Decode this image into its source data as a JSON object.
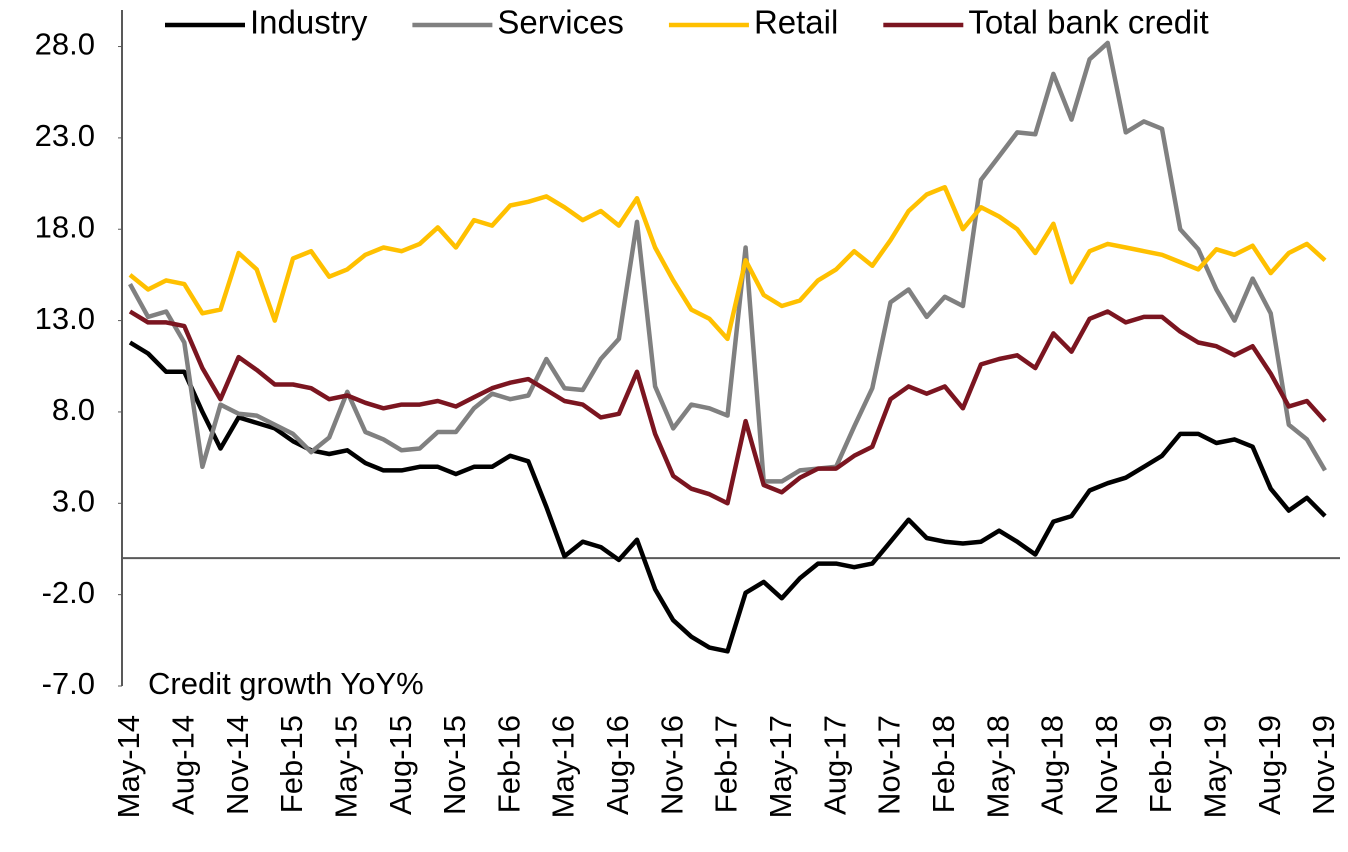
{
  "chart_data": {
    "type": "line",
    "annotation": "Credit growth  YoY%",
    "legend": "top",
    "categories": [
      "May-14",
      null,
      null,
      "Aug-14",
      null,
      null,
      "Nov-14",
      null,
      null,
      "Feb-15",
      null,
      null,
      "May-15",
      null,
      null,
      "Aug-15",
      null,
      null,
      "Nov-15",
      null,
      null,
      "Feb-16",
      null,
      null,
      "May-16",
      null,
      null,
      "Aug-16",
      null,
      null,
      "Nov-16",
      null,
      null,
      "Feb-17",
      null,
      null,
      "May-17",
      null,
      null,
      "Aug-17",
      null,
      null,
      "Nov-17",
      null,
      null,
      "Feb-18",
      null,
      null,
      "May-18",
      null,
      null,
      "Aug-18",
      null,
      null,
      "Nov-18",
      null,
      null,
      "Feb-19",
      null,
      null,
      "May-19",
      null,
      null,
      "Aug-19",
      null,
      null,
      "Nov-19"
    ],
    "ylim": [
      -7,
      30
    ],
    "yticks": [
      {
        "value": -7,
        "label": "-7.0"
      },
      {
        "value": -2,
        "label": "-2.0"
      },
      {
        "value": 3,
        "label": "3.0"
      },
      {
        "value": 8,
        "label": "8.0"
      },
      {
        "value": 13,
        "label": "13.0"
      },
      {
        "value": 18,
        "label": "18.0"
      },
      {
        "value": 23,
        "label": "23.0"
      },
      {
        "value": 28,
        "label": "28.0"
      }
    ],
    "series": [
      {
        "name": "Industry",
        "color": "#000000",
        "values": [
          11.8,
          11.2,
          10.2,
          10.2,
          8.0,
          6.0,
          7.7,
          7.4,
          7.1,
          6.4,
          5.9,
          5.7,
          5.9,
          5.2,
          4.8,
          4.8,
          5.0,
          5.0,
          4.6,
          5.0,
          5.0,
          5.6,
          5.3,
          2.8,
          0.1,
          0.9,
          0.6,
          -0.1,
          1.0,
          -1.7,
          -3.4,
          -4.3,
          -4.9,
          -5.1,
          -1.9,
          -1.3,
          -2.2,
          -1.1,
          -0.3,
          -0.3,
          -0.5,
          -0.3,
          0.9,
          2.1,
          1.1,
          0.9,
          0.8,
          0.9,
          1.5,
          0.9,
          0.2,
          2.0,
          2.3,
          3.7,
          4.1,
          4.4,
          5.0,
          5.6,
          6.8,
          6.8,
          6.3,
          6.5,
          6.1,
          3.8,
          2.6,
          3.3,
          2.3
        ]
      },
      {
        "name": "Services",
        "color": "#808080",
        "values": [
          15.0,
          13.2,
          13.5,
          11.8,
          5.0,
          8.4,
          7.9,
          7.8,
          7.3,
          6.8,
          5.8,
          6.6,
          9.1,
          6.9,
          6.5,
          5.9,
          6.0,
          6.9,
          6.9,
          8.2,
          9.0,
          8.7,
          8.9,
          10.9,
          9.3,
          9.2,
          10.9,
          12.0,
          18.4,
          9.4,
          7.1,
          8.4,
          8.2,
          7.8,
          17.0,
          4.2,
          4.2,
          4.8,
          4.9,
          5.0,
          7.2,
          9.3,
          14.0,
          14.7,
          13.2,
          14.3,
          13.8,
          20.7,
          22.0,
          23.3,
          23.2,
          26.5,
          24.0,
          27.3,
          28.2,
          23.3,
          23.9,
          23.5,
          18.0,
          16.9,
          14.7,
          13.0,
          15.3,
          13.4,
          7.3,
          6.5,
          4.8
        ]
      },
      {
        "name": "Retail",
        "color": "#ffc000",
        "values": [
          15.5,
          14.7,
          15.2,
          15.0,
          13.4,
          13.6,
          16.7,
          15.8,
          13.0,
          16.4,
          16.8,
          15.4,
          15.8,
          16.6,
          17.0,
          16.8,
          17.2,
          18.1,
          17.0,
          18.5,
          18.2,
          19.3,
          19.5,
          19.8,
          19.2,
          18.5,
          19.0,
          18.2,
          19.7,
          17.0,
          15.2,
          13.6,
          13.1,
          12.0,
          16.3,
          14.4,
          13.8,
          14.1,
          15.2,
          15.8,
          16.8,
          16.0,
          17.4,
          19.0,
          19.9,
          20.3,
          18.0,
          19.2,
          18.7,
          18.0,
          16.7,
          18.3,
          15.1,
          16.8,
          17.2,
          17.0,
          16.8,
          16.6,
          16.2,
          15.8,
          16.9,
          16.6,
          17.1,
          15.6,
          16.7,
          17.2,
          16.3
        ]
      },
      {
        "name": "Total bank credit",
        "color": "#7b1520",
        "values": [
          13.5,
          12.9,
          12.9,
          12.7,
          10.4,
          8.7,
          11.0,
          10.3,
          9.5,
          9.5,
          9.3,
          8.7,
          8.9,
          8.5,
          8.2,
          8.4,
          8.4,
          8.6,
          8.3,
          8.8,
          9.3,
          9.6,
          9.8,
          9.2,
          8.6,
          8.4,
          7.7,
          7.9,
          10.2,
          6.8,
          4.5,
          3.8,
          3.5,
          3.0,
          7.5,
          4.0,
          3.6,
          4.4,
          4.9,
          4.9,
          5.6,
          6.1,
          8.7,
          9.4,
          9.0,
          9.4,
          8.2,
          10.6,
          10.9,
          11.1,
          10.4,
          12.3,
          11.3,
          13.1,
          13.5,
          12.9,
          13.2,
          13.2,
          12.4,
          11.8,
          11.6,
          11.1,
          11.6,
          10.1,
          8.3,
          8.6,
          7.5
        ]
      }
    ]
  }
}
